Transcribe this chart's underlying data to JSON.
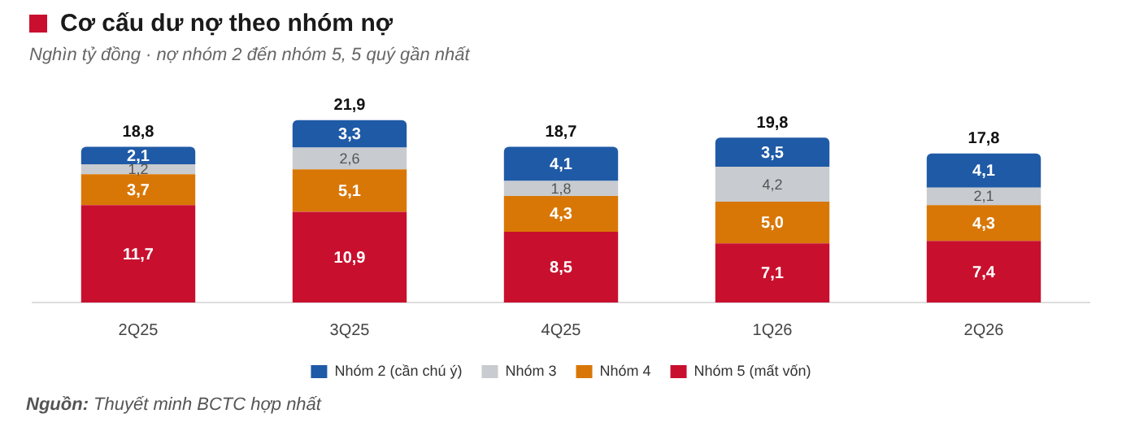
{
  "chart_data": {
    "type": "bar",
    "title": "Cơ cấu dư nợ theo nhóm nợ",
    "subtitle": "Nghìn tỷ đồng · nợ nhóm 2 đến nhóm 5, 5 quý gần nhất",
    "categories": [
      "2Q25",
      "3Q25",
      "4Q25",
      "1Q26",
      "2Q26"
    ],
    "stacked": true,
    "legend": "bottom",
    "grid": false,
    "series": [
      {
        "name": "Nhóm 5 (mất vốn)",
        "color": "#c8102e",
        "values": [
          11.7,
          10.9,
          8.5,
          7.1,
          7.4
        ],
        "value_labels": [
          "11,7",
          "10,9",
          "8,5",
          "7,1",
          "7,4"
        ]
      },
      {
        "name": "Nhóm 4",
        "color": "#d97706",
        "values": [
          3.7,
          5.1,
          4.3,
          5.0,
          4.3
        ],
        "value_labels": [
          "3,7",
          "5,1",
          "4,3",
          "5,0",
          "4,3"
        ]
      },
      {
        "name": "Nhóm 3",
        "color": "#c8cbcf",
        "values": [
          1.2,
          2.6,
          1.8,
          4.2,
          2.1
        ],
        "value_labels": [
          "1,2",
          "2,6",
          "1,8",
          "4,2",
          "2,1"
        ]
      },
      {
        "name": "Nhóm 2 (cần chú ý)",
        "color": "#1f5aa6",
        "values": [
          2.1,
          3.3,
          4.1,
          3.5,
          4.1
        ],
        "value_labels": [
          "2,1",
          "3,3",
          "4,1",
          "3,5",
          "4,1"
        ]
      }
    ],
    "totals": [
      "18,8",
      "21,9",
      "18,7",
      "19,8",
      "17,8"
    ],
    "annotations": [
      "Nguồn: Thuyết minh BCTC hợp nhất"
    ]
  }
}
